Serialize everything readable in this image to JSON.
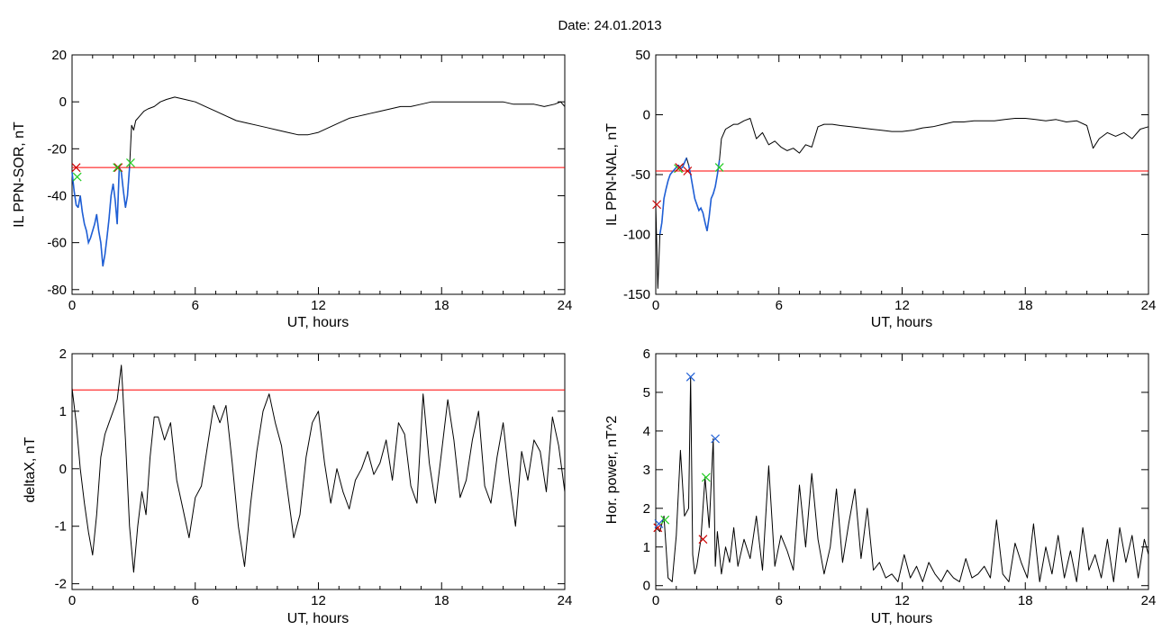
{
  "title": "Date:  24.01.2013",
  "chart_data": [
    {
      "type": "line",
      "xlabel": "UT, hours",
      "ylabel": "IL PPN-SOR, nT",
      "xlim": [
        0,
        24
      ],
      "ylim": [
        -82,
        20
      ],
      "xticks": [
        0,
        6,
        12,
        18,
        24
      ],
      "yticks": [
        -80,
        -60,
        -40,
        -20,
        0,
        20
      ],
      "threshold": -28,
      "threshold_color": "#ff0000",
      "line_color": "#000000",
      "highlight_color": "#1f5fd6",
      "highlight_ranges": [
        [
          0,
          0.3
        ],
        [
          0.3,
          2.3
        ],
        [
          2.3,
          2.85
        ]
      ],
      "series": [
        {
          "x": [
            0,
            0.1,
            0.2,
            0.3,
            0.4,
            0.5,
            0.6,
            0.7,
            0.8,
            0.9,
            1.0,
            1.1,
            1.2,
            1.3,
            1.4,
            1.5,
            1.6,
            1.7,
            1.8,
            1.9,
            2.0,
            2.1,
            2.2,
            2.3,
            2.4,
            2.5,
            2.6,
            2.7,
            2.8,
            2.9,
            3.0,
            3.1,
            3.3,
            3.5,
            3.7,
            4.0,
            4.3,
            4.6,
            5.0,
            5.5,
            6.0,
            6.5,
            7.0,
            7.5,
            8.0,
            8.5,
            9.0,
            9.5,
            10.0,
            10.5,
            11.0,
            11.5,
            12.0,
            12.5,
            13.0,
            13.5,
            14.0,
            14.5,
            15.0,
            15.5,
            16.0,
            16.5,
            17.0,
            17.5,
            18.0,
            18.5,
            19.0,
            19.5,
            20.0,
            20.5,
            21.0,
            21.5,
            22.0,
            22.5,
            23.0,
            23.5,
            23.8,
            24.0
          ],
          "y": [
            -30,
            -38,
            -44,
            -45,
            -40,
            -47,
            -52,
            -55,
            -60,
            -58,
            -55,
            -52,
            -48,
            -55,
            -60,
            -70,
            -65,
            -58,
            -50,
            -40,
            -35,
            -42,
            -52,
            -28,
            -30,
            -38,
            -45,
            -40,
            -28,
            -10,
            -12,
            -8,
            -6,
            -4,
            -3,
            -2,
            0,
            1,
            2,
            1,
            0,
            -2,
            -4,
            -6,
            -8,
            -9,
            -10,
            -11,
            -12,
            -13,
            -14,
            -14,
            -13,
            -11,
            -9,
            -7,
            -6,
            -5,
            -4,
            -3,
            -2,
            -2,
            -1,
            0,
            0,
            0,
            0,
            0,
            0,
            0,
            0,
            -1,
            -1,
            -1,
            -2,
            -1,
            0,
            -2
          ]
        }
      ],
      "markers": [
        {
          "x": 0.2,
          "y": -28,
          "color": "#cc0000"
        },
        {
          "x": 0.25,
          "y": -32,
          "color": "#22cc22"
        },
        {
          "x": 2.25,
          "y": -28,
          "color": "#cc0000"
        },
        {
          "x": 2.2,
          "y": -28,
          "color": "#22cc22"
        },
        {
          "x": 2.85,
          "y": -26,
          "color": "#22cc22"
        }
      ]
    },
    {
      "type": "line",
      "xlabel": "UT, hours",
      "ylabel": "IL PPN-NAL, nT",
      "xlim": [
        0,
        24
      ],
      "ylim": [
        -150,
        50
      ],
      "xticks": [
        0,
        6,
        12,
        18,
        24
      ],
      "yticks": [
        -150,
        -100,
        -50,
        0,
        50
      ],
      "threshold": -47,
      "threshold_color": "#ff0000",
      "line_color": "#000000",
      "highlight_color": "#1f5fd6",
      "highlight_ranges": [
        [
          0.15,
          1.1
        ],
        [
          1.1,
          1.55
        ],
        [
          1.55,
          3.1
        ]
      ],
      "series": [
        {
          "x": [
            0,
            0.1,
            0.2,
            0.3,
            0.4,
            0.5,
            0.6,
            0.7,
            0.8,
            0.9,
            1.0,
            1.1,
            1.2,
            1.3,
            1.4,
            1.5,
            1.6,
            1.7,
            1.8,
            1.9,
            2.0,
            2.1,
            2.2,
            2.3,
            2.4,
            2.5,
            2.6,
            2.7,
            2.8,
            2.9,
            3.0,
            3.1,
            3.2,
            3.4,
            3.6,
            3.8,
            4.0,
            4.3,
            4.6,
            4.9,
            5.2,
            5.5,
            5.8,
            6.1,
            6.4,
            6.7,
            7.0,
            7.3,
            7.6,
            7.9,
            8.2,
            8.6,
            9.0,
            9.5,
            10.0,
            10.5,
            11.0,
            11.5,
            12.0,
            12.5,
            13.0,
            13.5,
            14.0,
            14.5,
            15.0,
            15.5,
            16.0,
            16.5,
            17.0,
            17.5,
            18.0,
            18.5,
            19.0,
            19.5,
            20.0,
            20.5,
            21.0,
            21.3,
            21.6,
            22.0,
            22.4,
            22.8,
            23.2,
            23.6,
            24.0
          ],
          "y": [
            -75,
            -145,
            -100,
            -90,
            -70,
            -62,
            -55,
            -50,
            -48,
            -46,
            -44,
            -42,
            -45,
            -44,
            -40,
            -36,
            -42,
            -50,
            -60,
            -70,
            -75,
            -80,
            -78,
            -82,
            -90,
            -97,
            -85,
            -70,
            -66,
            -60,
            -50,
            -38,
            -20,
            -12,
            -10,
            -8,
            -8,
            -5,
            -3,
            -20,
            -15,
            -25,
            -22,
            -27,
            -30,
            -28,
            -32,
            -25,
            -27,
            -10,
            -8,
            -8,
            -9,
            -10,
            -11,
            -12,
            -13,
            -14,
            -14,
            -13,
            -11,
            -10,
            -8,
            -6,
            -6,
            -5,
            -5,
            -5,
            -4,
            -3,
            -3,
            -4,
            -5,
            -4,
            -6,
            -5,
            -9,
            -28,
            -20,
            -15,
            -18,
            -15,
            -20,
            -12,
            -10
          ]
        }
      ],
      "markers": [
        {
          "x": 0.05,
          "y": -75,
          "color": "#cc0000"
        },
        {
          "x": 1.1,
          "y": -45,
          "color": "#22cc22"
        },
        {
          "x": 1.15,
          "y": -44,
          "color": "#cc0000"
        },
        {
          "x": 1.55,
          "y": -47,
          "color": "#cc0000"
        },
        {
          "x": 3.1,
          "y": -44,
          "color": "#22cc22"
        }
      ]
    },
    {
      "type": "line",
      "xlabel": "UT, hours",
      "ylabel": "deltaX, nT",
      "xlim": [
        0,
        24
      ],
      "ylim": [
        -2.1,
        2
      ],
      "xticks": [
        0,
        6,
        12,
        18,
        24
      ],
      "yticks": [
        -2,
        -1,
        0,
        1,
        2
      ],
      "threshold": 1.37,
      "threshold_color": "#ff0000",
      "line_color": "#000000",
      "series": [
        {
          "x": [
            0,
            0.2,
            0.4,
            0.6,
            0.8,
            1.0,
            1.2,
            1.4,
            1.6,
            1.8,
            2.0,
            2.2,
            2.4,
            2.6,
            2.8,
            3.0,
            3.2,
            3.4,
            3.6,
            3.8,
            4.0,
            4.2,
            4.5,
            4.8,
            5.1,
            5.4,
            5.7,
            6.0,
            6.3,
            6.6,
            6.9,
            7.2,
            7.5,
            7.8,
            8.1,
            8.4,
            8.7,
            9.0,
            9.3,
            9.6,
            9.9,
            10.2,
            10.5,
            10.8,
            11.1,
            11.4,
            11.7,
            12.0,
            12.3,
            12.6,
            12.9,
            13.2,
            13.5,
            13.8,
            14.1,
            14.4,
            14.7,
            15.0,
            15.3,
            15.6,
            15.9,
            16.2,
            16.5,
            16.8,
            17.1,
            17.4,
            17.7,
            18.0,
            18.3,
            18.6,
            18.9,
            19.2,
            19.5,
            19.8,
            20.1,
            20.4,
            20.7,
            21.0,
            21.3,
            21.6,
            21.9,
            22.2,
            22.5,
            22.8,
            23.1,
            23.4,
            23.7,
            24.0
          ],
          "y": [
            1.4,
            0.8,
            0.0,
            -0.6,
            -1.1,
            -1.5,
            -0.8,
            0.2,
            0.6,
            0.8,
            1.0,
            1.2,
            1.8,
            0.5,
            -1.0,
            -1.8,
            -1.0,
            -0.4,
            -0.8,
            0.2,
            0.9,
            0.9,
            0.5,
            0.8,
            -0.2,
            -0.7,
            -1.2,
            -0.5,
            -0.3,
            0.4,
            1.1,
            0.8,
            1.1,
            0.1,
            -1.0,
            -1.7,
            -0.6,
            0.3,
            1.0,
            1.3,
            0.8,
            0.4,
            -0.4,
            -1.2,
            -0.8,
            0.2,
            0.8,
            1.0,
            0.1,
            -0.6,
            0.0,
            -0.4,
            -0.7,
            -0.2,
            0.0,
            0.3,
            -0.1,
            0.1,
            0.5,
            -0.2,
            0.8,
            0.6,
            -0.3,
            -0.6,
            1.3,
            0.1,
            -0.6,
            0.3,
            1.2,
            0.5,
            -0.5,
            -0.2,
            0.5,
            1.0,
            -0.3,
            -0.6,
            0.2,
            0.8,
            -0.2,
            -1.0,
            0.3,
            -0.2,
            0.5,
            0.3,
            -0.4,
            0.9,
            0.4,
            -0.4
          ]
        }
      ],
      "markers": []
    },
    {
      "type": "line",
      "xlabel": "UT, hours",
      "ylabel": "Hor. power, nT^2",
      "xlim": [
        0,
        24
      ],
      "ylim": [
        -0.1,
        6
      ],
      "xticks": [
        0,
        6,
        12,
        18,
        24
      ],
      "yticks": [
        0,
        1,
        2,
        3,
        4,
        5,
        6
      ],
      "line_color": "#000000",
      "series": [
        {
          "x": [
            0,
            0.2,
            0.4,
            0.6,
            0.8,
            1.0,
            1.2,
            1.4,
            1.6,
            1.7,
            1.8,
            1.9,
            2.0,
            2.2,
            2.4,
            2.6,
            2.8,
            2.9,
            3.0,
            3.2,
            3.4,
            3.6,
            3.8,
            4.0,
            4.3,
            4.6,
            4.9,
            5.2,
            5.5,
            5.8,
            6.1,
            6.4,
            6.7,
            7.0,
            7.3,
            7.6,
            7.9,
            8.2,
            8.5,
            8.8,
            9.1,
            9.4,
            9.7,
            10.0,
            10.3,
            10.6,
            10.9,
            11.2,
            11.5,
            11.8,
            12.1,
            12.4,
            12.7,
            13.0,
            13.3,
            13.6,
            13.9,
            14.2,
            14.5,
            14.8,
            15.1,
            15.4,
            15.7,
            16.0,
            16.3,
            16.6,
            16.9,
            17.2,
            17.5,
            17.8,
            18.1,
            18.4,
            18.7,
            19.0,
            19.3,
            19.6,
            19.9,
            20.2,
            20.5,
            20.8,
            21.1,
            21.4,
            21.7,
            22.0,
            22.3,
            22.6,
            22.9,
            23.2,
            23.5,
            23.8,
            24.0
          ],
          "y": [
            1.5,
            1.4,
            1.8,
            0.2,
            0.1,
            1.3,
            3.5,
            1.8,
            2.0,
            5.4,
            0.8,
            0.3,
            0.5,
            1.2,
            2.8,
            1.5,
            3.8,
            0.5,
            1.4,
            0.3,
            1.0,
            0.6,
            1.5,
            0.5,
            1.2,
            0.7,
            1.8,
            0.4,
            3.1,
            0.5,
            1.3,
            0.9,
            0.4,
            2.6,
            1.0,
            2.9,
            1.2,
            0.3,
            1.0,
            2.5,
            0.6,
            1.6,
            2.5,
            0.7,
            2.0,
            0.4,
            0.6,
            0.2,
            0.3,
            0.1,
            0.8,
            0.2,
            0.5,
            0.1,
            0.6,
            0.3,
            0.1,
            0.4,
            0.2,
            0.1,
            0.7,
            0.2,
            0.3,
            0.5,
            0.2,
            1.7,
            0.3,
            0.1,
            1.1,
            0.6,
            0.2,
            1.6,
            0.1,
            1.0,
            0.3,
            1.3,
            0.2,
            0.9,
            0.1,
            1.5,
            0.4,
            0.8,
            0.2,
            1.2,
            0.1,
            1.5,
            0.6,
            1.3,
            0.2,
            1.2,
            0.8
          ]
        }
      ],
      "markers": [
        {
          "x": 0.1,
          "y": 1.5,
          "color": "#cc0000"
        },
        {
          "x": 0.15,
          "y": 1.6,
          "color": "#1f5fd6"
        },
        {
          "x": 0.45,
          "y": 1.7,
          "color": "#22cc22"
        },
        {
          "x": 1.7,
          "y": 5.4,
          "color": "#1f5fd6"
        },
        {
          "x": 2.3,
          "y": 1.2,
          "color": "#cc0000"
        },
        {
          "x": 2.45,
          "y": 2.8,
          "color": "#22cc22"
        },
        {
          "x": 2.9,
          "y": 3.8,
          "color": "#1f5fd6"
        }
      ]
    }
  ]
}
